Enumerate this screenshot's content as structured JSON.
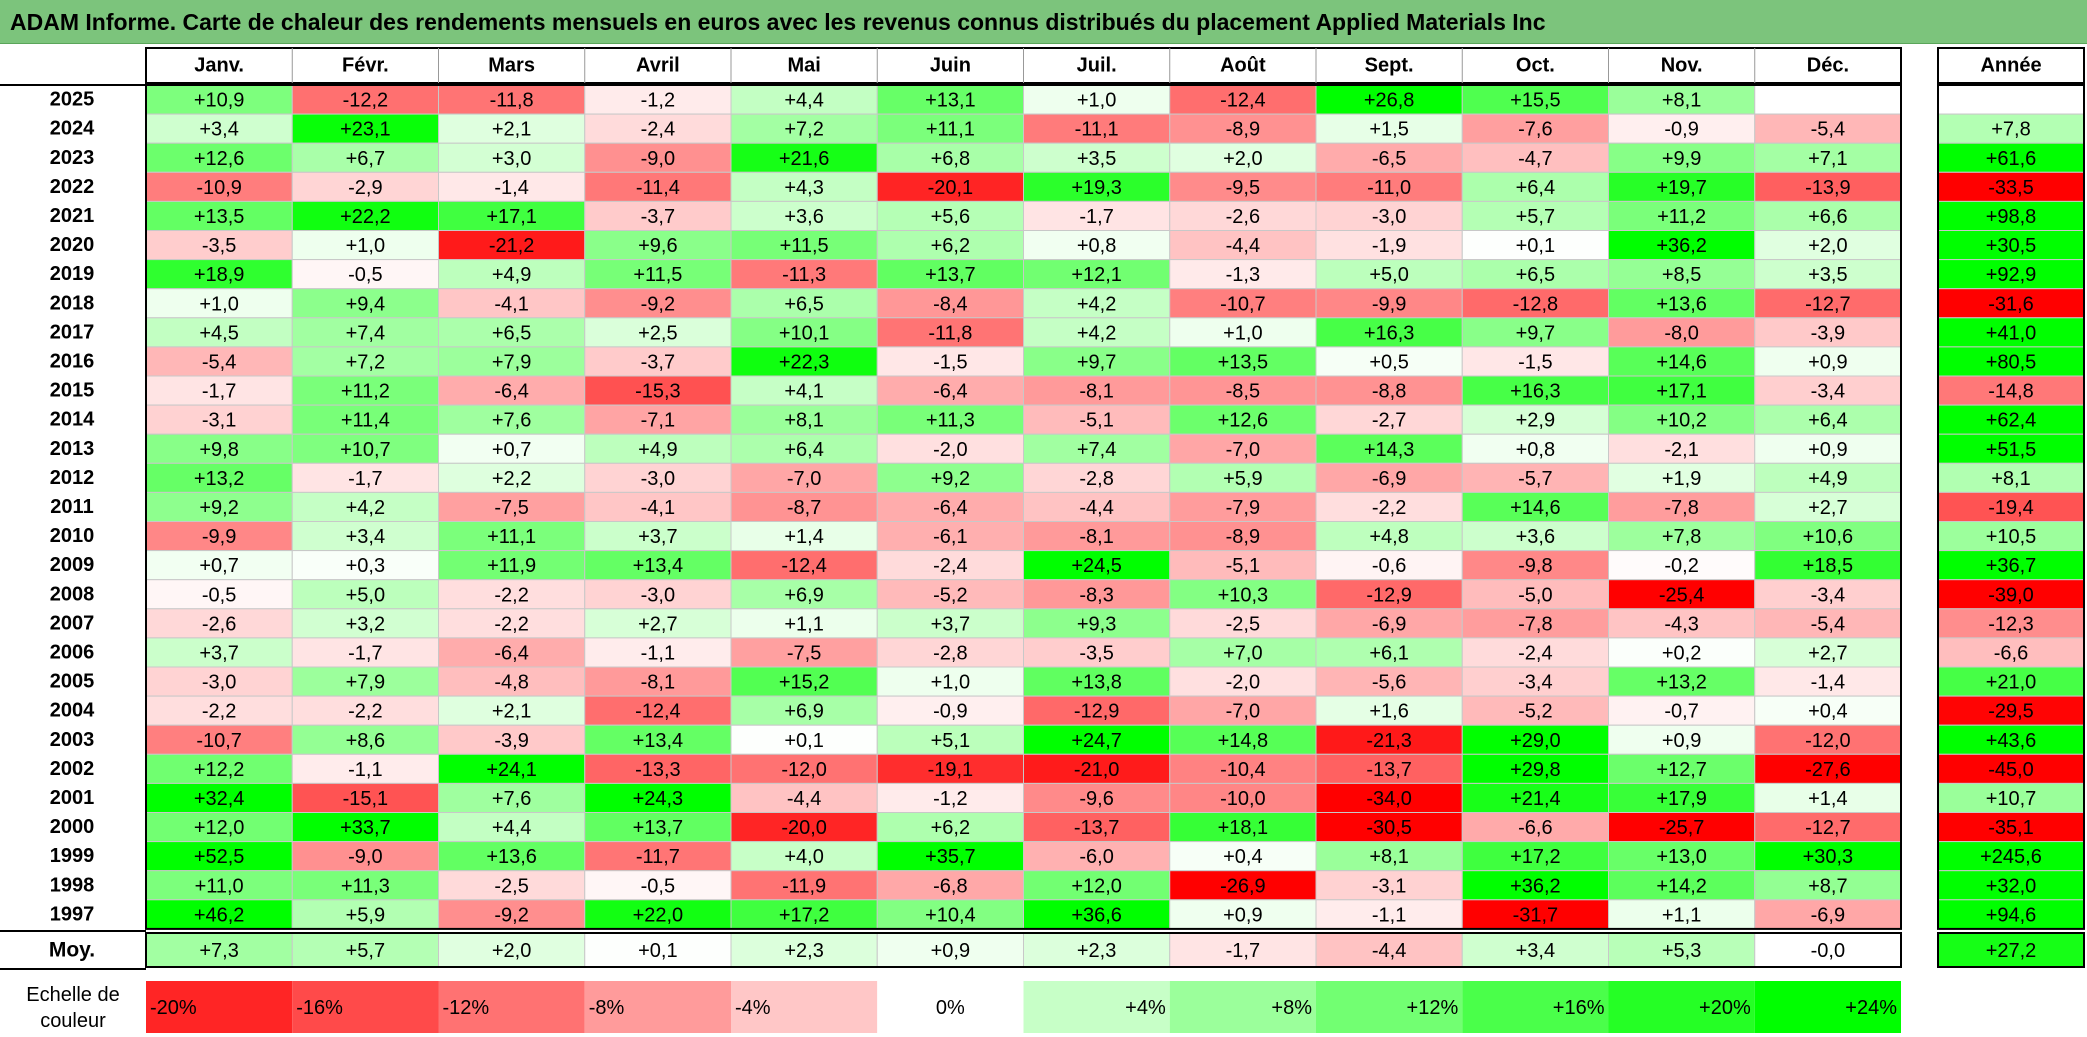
{
  "title": "ADAM Informe. Carte de chaleur des rendements mensuels en euros avec les revenus connus distribués du placement Applied Materials Inc",
  "colors": {
    "title_bar": "#7cc47c",
    "negative_max": "#ff0000",
    "neutral": "#ffffff",
    "positive_max": "#00ff00"
  },
  "chart_data": {
    "type": "heatmap",
    "months": [
      "Janv.",
      "Févr.",
      "Mars",
      "Avril",
      "Mai",
      "Juin",
      "Juil.",
      "Août",
      "Sept.",
      "Oct.",
      "Nov.",
      "Déc."
    ],
    "annual_header": "Année",
    "average_label": "Moy.",
    "rows": [
      {
        "year": "2025",
        "values": [
          "+10,9",
          "-12,2",
          "-11,8",
          "-1,2",
          "+4,4",
          "+13,1",
          "+1,0",
          "-12,4",
          "+26,8",
          "+15,5",
          "+8,1",
          ""
        ],
        "annual": ""
      },
      {
        "year": "2024",
        "values": [
          "+3,4",
          "+23,1",
          "+2,1",
          "-2,4",
          "+7,2",
          "+11,1",
          "-11,1",
          "-8,9",
          "+1,5",
          "-7,6",
          "-0,9",
          "-5,4"
        ],
        "annual": "+7,8"
      },
      {
        "year": "2023",
        "values": [
          "+12,6",
          "+6,7",
          "+3,0",
          "-9,0",
          "+21,6",
          "+6,8",
          "+3,5",
          "+2,0",
          "-6,5",
          "-4,7",
          "+9,9",
          "+7,1"
        ],
        "annual": "+61,6"
      },
      {
        "year": "2022",
        "values": [
          "-10,9",
          "-2,9",
          "-1,4",
          "-11,4",
          "+4,3",
          "-20,1",
          "+19,3",
          "-9,5",
          "-11,0",
          "+6,4",
          "+19,7",
          "-13,9"
        ],
        "annual": "-33,5"
      },
      {
        "year": "2021",
        "values": [
          "+13,5",
          "+22,2",
          "+17,1",
          "-3,7",
          "+3,6",
          "+5,6",
          "-1,7",
          "-2,6",
          "-3,0",
          "+5,7",
          "+11,2",
          "+6,6"
        ],
        "annual": "+98,8"
      },
      {
        "year": "2020",
        "values": [
          "-3,5",
          "+1,0",
          "-21,2",
          "+9,6",
          "+11,5",
          "+6,2",
          "+0,8",
          "-4,4",
          "-1,9",
          "+0,1",
          "+36,2",
          "+2,0"
        ],
        "annual": "+30,5"
      },
      {
        "year": "2019",
        "values": [
          "+18,9",
          "-0,5",
          "+4,9",
          "+11,5",
          "-11,3",
          "+13,7",
          "+12,1",
          "-1,3",
          "+5,0",
          "+6,5",
          "+8,5",
          "+3,5"
        ],
        "annual": "+92,9"
      },
      {
        "year": "2018",
        "values": [
          "+1,0",
          "+9,4",
          "-4,1",
          "-9,2",
          "+6,5",
          "-8,4",
          "+4,2",
          "-10,7",
          "-9,9",
          "-12,8",
          "+13,6",
          "-12,7"
        ],
        "annual": "-31,6"
      },
      {
        "year": "2017",
        "values": [
          "+4,5",
          "+7,4",
          "+6,5",
          "+2,5",
          "+10,1",
          "-11,8",
          "+4,2",
          "+1,0",
          "+16,3",
          "+9,7",
          "-8,0",
          "-3,9"
        ],
        "annual": "+41,0"
      },
      {
        "year": "2016",
        "values": [
          "-5,4",
          "+7,2",
          "+7,9",
          "-3,7",
          "+22,3",
          "-1,5",
          "+9,7",
          "+13,5",
          "+0,5",
          "-1,5",
          "+14,6",
          "+0,9"
        ],
        "annual": "+80,5"
      },
      {
        "year": "2015",
        "values": [
          "-1,7",
          "+11,2",
          "-6,4",
          "-15,3",
          "+4,1",
          "-6,4",
          "-8,1",
          "-8,5",
          "-8,8",
          "+16,3",
          "+17,1",
          "-3,4"
        ],
        "annual": "-14,8"
      },
      {
        "year": "2014",
        "values": [
          "-3,1",
          "+11,4",
          "+7,6",
          "-7,1",
          "+8,1",
          "+11,3",
          "-5,1",
          "+12,6",
          "-2,7",
          "+2,9",
          "+10,2",
          "+6,4"
        ],
        "annual": "+62,4"
      },
      {
        "year": "2013",
        "values": [
          "+9,8",
          "+10,7",
          "+0,7",
          "+4,9",
          "+6,4",
          "-2,0",
          "+7,4",
          "-7,0",
          "+14,3",
          "+0,8",
          "-2,1",
          "+0,9"
        ],
        "annual": "+51,5"
      },
      {
        "year": "2012",
        "values": [
          "+13,2",
          "-1,7",
          "+2,2",
          "-3,0",
          "-7,0",
          "+9,2",
          "-2,8",
          "+5,9",
          "-6,9",
          "-5,7",
          "+1,9",
          "+4,9"
        ],
        "annual": "+8,1"
      },
      {
        "year": "2011",
        "values": [
          "+9,2",
          "+4,2",
          "-7,5",
          "-4,1",
          "-8,7",
          "-6,4",
          "-4,4",
          "-7,9",
          "-2,2",
          "+14,6",
          "-7,8",
          "+2,7"
        ],
        "annual": "-19,4"
      },
      {
        "year": "2010",
        "values": [
          "-9,9",
          "+3,4",
          "+11,1",
          "+3,7",
          "+1,4",
          "-6,1",
          "-8,1",
          "-8,9",
          "+4,8",
          "+3,6",
          "+7,8",
          "+10,6"
        ],
        "annual": "+10,5"
      },
      {
        "year": "2009",
        "values": [
          "+0,7",
          "+0,3",
          "+11,9",
          "+13,4",
          "-12,4",
          "-2,4",
          "+24,5",
          "-5,1",
          "-0,6",
          "-9,8",
          "-0,2",
          "+18,5"
        ],
        "annual": "+36,7"
      },
      {
        "year": "2008",
        "values": [
          "-0,5",
          "+5,0",
          "-2,2",
          "-3,0",
          "+6,9",
          "-5,2",
          "-8,3",
          "+10,3",
          "-12,9",
          "-5,0",
          "-25,4",
          "-3,4"
        ],
        "annual": "-39,0"
      },
      {
        "year": "2007",
        "values": [
          "-2,6",
          "+3,2",
          "-2,2",
          "+2,7",
          "+1,1",
          "+3,7",
          "+9,3",
          "-2,5",
          "-6,9",
          "-7,8",
          "-4,3",
          "-5,4"
        ],
        "annual": "-12,3"
      },
      {
        "year": "2006",
        "values": [
          "+3,7",
          "-1,7",
          "-6,4",
          "-1,1",
          "-7,5",
          "-2,8",
          "-3,5",
          "+7,0",
          "+6,1",
          "-2,4",
          "+0,2",
          "+2,7"
        ],
        "annual": "-6,6"
      },
      {
        "year": "2005",
        "values": [
          "-3,0",
          "+7,9",
          "-4,8",
          "-8,1",
          "+15,2",
          "+1,0",
          "+13,8",
          "-2,0",
          "-5,6",
          "-3,4",
          "+13,2",
          "-1,4"
        ],
        "annual": "+21,0"
      },
      {
        "year": "2004",
        "values": [
          "-2,2",
          "-2,2",
          "+2,1",
          "-12,4",
          "+6,9",
          "-0,9",
          "-12,9",
          "-7,0",
          "+1,6",
          "-5,2",
          "-0,7",
          "+0,4"
        ],
        "annual": "-29,5"
      },
      {
        "year": "2003",
        "values": [
          "-10,7",
          "+8,6",
          "-3,9",
          "+13,4",
          "+0,1",
          "+5,1",
          "+24,7",
          "+14,8",
          "-21,3",
          "+29,0",
          "+0,9",
          "-12,0"
        ],
        "annual": "+43,6"
      },
      {
        "year": "2002",
        "values": [
          "+12,2",
          "-1,1",
          "+24,1",
          "-13,3",
          "-12,0",
          "-19,1",
          "-21,0",
          "-10,4",
          "-13,7",
          "+29,8",
          "+12,7",
          "-27,6"
        ],
        "annual": "-45,0"
      },
      {
        "year": "2001",
        "values": [
          "+32,4",
          "-15,1",
          "+7,6",
          "+24,3",
          "-4,4",
          "-1,2",
          "-9,6",
          "-10,0",
          "-34,0",
          "+21,4",
          "+17,9",
          "+1,4"
        ],
        "annual": "+10,7"
      },
      {
        "year": "2000",
        "values": [
          "+12,0",
          "+33,7",
          "+4,4",
          "+13,7",
          "-20,0",
          "+6,2",
          "-13,7",
          "+18,1",
          "-30,5",
          "-6,6",
          "-25,7",
          "-12,7"
        ],
        "annual": "-35,1"
      },
      {
        "year": "1999",
        "values": [
          "+52,5",
          "-9,0",
          "+13,6",
          "-11,7",
          "+4,0",
          "+35,7",
          "-6,0",
          "+0,4",
          "+8,1",
          "+17,2",
          "+13,0",
          "+30,3"
        ],
        "annual": "+245,6"
      },
      {
        "year": "1998",
        "values": [
          "+11,0",
          "+11,3",
          "-2,5",
          "-0,5",
          "-11,9",
          "-6,8",
          "+12,0",
          "-26,9",
          "-3,1",
          "+36,2",
          "+14,2",
          "+8,7"
        ],
        "annual": "+32,0"
      },
      {
        "year": "1997",
        "values": [
          "+46,2",
          "+5,9",
          "-9,2",
          "+22,0",
          "+17,2",
          "+10,4",
          "+36,6",
          "+0,9",
          "-1,1",
          "-31,7",
          "+1,1",
          "-6,9"
        ],
        "annual": "+94,6"
      }
    ],
    "averages": {
      "values": [
        "+7,3",
        "+5,7",
        "+2,0",
        "+0,1",
        "+2,3",
        "+0,9",
        "+2,3",
        "-1,7",
        "-4,4",
        "+3,4",
        "+5,3",
        "-0,0"
      ],
      "annual": "+27,2"
    },
    "scale": {
      "label_line1": "Echelle de",
      "label_line2": "couleur",
      "steps": [
        {
          "value": -20,
          "label": "-20%"
        },
        {
          "value": -16,
          "label": "-16%"
        },
        {
          "value": -12,
          "label": "-12%"
        },
        {
          "value": -8,
          "label": "-8%"
        },
        {
          "value": -4,
          "label": "-4%"
        },
        {
          "value": 0,
          "label": "0%"
        },
        {
          "value": 4,
          "label": "+4%"
        },
        {
          "value": 8,
          "label": "+8%"
        },
        {
          "value": 12,
          "label": "+12%"
        },
        {
          "value": 16,
          "label": "+16%"
        },
        {
          "value": 20,
          "label": "+20%"
        },
        {
          "value": 24,
          "label": "+24%"
        }
      ]
    }
  }
}
